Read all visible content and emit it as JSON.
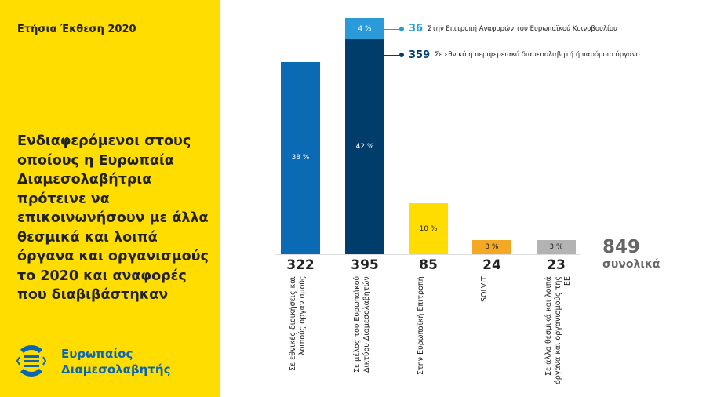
{
  "header": {
    "report": "Ετήσια Έκθεση 2020"
  },
  "title": "Ενδιαφερόμενοι στους οποίους η Ευρωπαία Διαμεσολαβήτρια πρότεινε να επικοινωνήσουν με άλλα θεσμικά και λοιπά όργανα και οργανισμούς το 2020 και αναφορές που διαβιβάστηκαν",
  "brand": {
    "line1": "Ευρωπαίος",
    "line2": "Διαμεσολαβητής"
  },
  "chart_data": {
    "type": "bar",
    "categories": [
      "Σε εθνικές διοικήσεις και λοιπούς οργανισμούς",
      "Σε μέλος του Ευρωπαϊκού Δικτύου Διαμεσολαβητών",
      "Στην Ευρωπαϊκή Επιτροπή",
      "SOLVIT",
      "Σε άλλα θεσμικά και λοιπά όργανα και οργανισμούς της ΕΕ"
    ],
    "values": [
      322,
      395,
      85,
      24,
      23
    ],
    "percent_labels": [
      "38 %",
      "42 %",
      "10 %",
      "3 %",
      "3 %"
    ],
    "colors": [
      "#0a6ab4",
      "#003d6b",
      "#ffdd00",
      "#f4a823",
      "#b3b3b3"
    ],
    "stack": {
      "category_index": 1,
      "segments": [
        {
          "value": 359,
          "label": "Σε εθνικό ή περιφερειακό διαμεσολαβητή ή παρόμοιο όργανο",
          "color": "#003d6b",
          "percent_label": ""
        },
        {
          "value": 36,
          "label": "Στην Επιτροπή Αναφορών του Ευρωπαϊκού Κοινοβουλίου",
          "color": "#2b9ad8",
          "percent_label": "4 %"
        }
      ]
    },
    "total": {
      "value": "849",
      "label": "συνολικά"
    },
    "ylim": [
      0,
      395
    ]
  }
}
